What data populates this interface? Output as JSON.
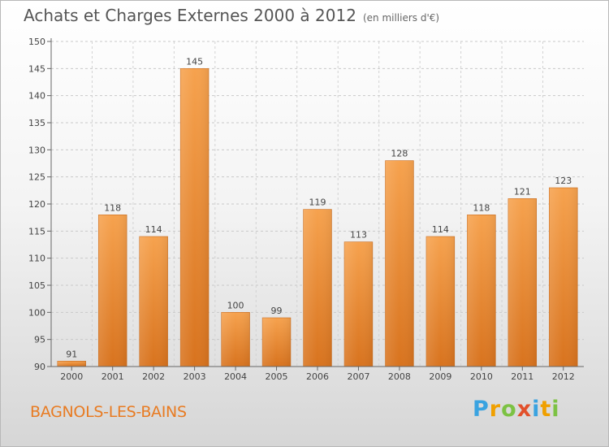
{
  "title": "Achats et Charges Externes 2000 à 2012",
  "unit": "(en milliers d'€)",
  "commune": "BAGNOLS-LES-BAINS",
  "logo": {
    "letters": [
      "P",
      "r",
      "o",
      "x",
      "i",
      "t",
      "i"
    ],
    "colors": [
      "#3aa3e0",
      "#f0a000",
      "#7cc243",
      "#e2502b",
      "#3aa3e0",
      "#f0a000",
      "#7cc243"
    ]
  },
  "chart_data": {
    "type": "bar",
    "categories": [
      "2000",
      "2001",
      "2002",
      "2003",
      "2004",
      "2005",
      "2006",
      "2007",
      "2008",
      "2009",
      "2010",
      "2011",
      "2012"
    ],
    "values": [
      91,
      118,
      114,
      145,
      100,
      99,
      119,
      113,
      128,
      114,
      118,
      121,
      123
    ],
    "data_labels": [
      "91",
      "118",
      "114",
      "145",
      "100",
      "99",
      "119",
      "113",
      "128",
      "114",
      "118",
      "121",
      "123"
    ],
    "title": "Achats et Charges Externes 2000 à 2012",
    "xlabel": "",
    "ylabel": "",
    "ylim": [
      90,
      150
    ],
    "yticks": [
      90,
      95,
      100,
      105,
      110,
      115,
      120,
      125,
      130,
      135,
      140,
      145,
      150
    ],
    "grid": true,
    "bar_color": "#f0923a"
  }
}
